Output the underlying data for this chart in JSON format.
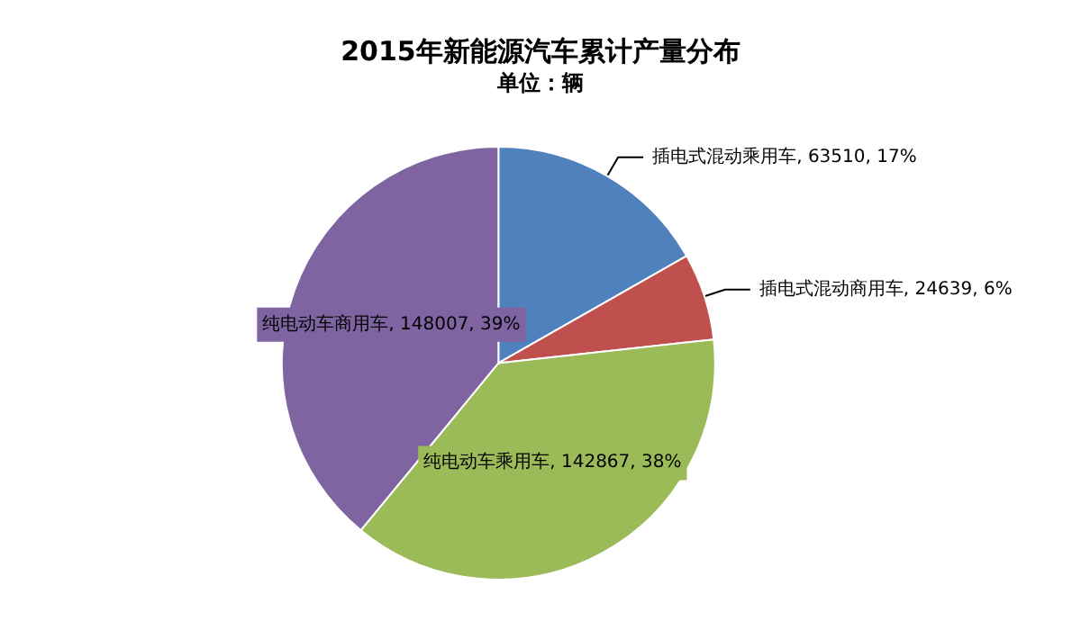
{
  "chart_data": {
    "type": "pie",
    "title": "2015年新能源汽车累计产量分布",
    "subtitle": "单位：辆",
    "categories": [
      "插电式混动乘用车",
      "插电式混动商用车",
      "纯电动车乘用车",
      "纯电动车商用车"
    ],
    "values": [
      63510,
      24639,
      142867,
      148007
    ],
    "value_labels": [
      "63510, 17%",
      "24639, 6%",
      "142867, 38%",
      "148007, 39%"
    ],
    "colors": [
      "#4f81bd",
      "#c0504d",
      "#9bbb59",
      "#8064a2"
    ],
    "legend": false
  }
}
